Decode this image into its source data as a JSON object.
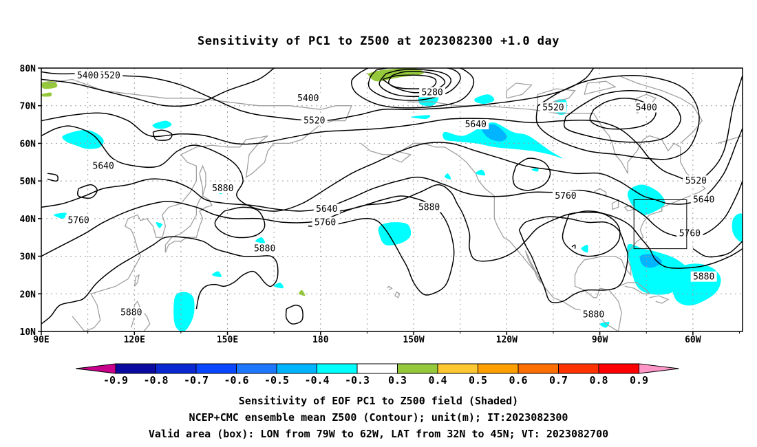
{
  "title": "Sensitivity of PC1 to Z500 at 2023082300 +1.0 day",
  "lat_labels": [
    "80N",
    "70N",
    "60N",
    "50N",
    "40N",
    "30N",
    "20N",
    "10N"
  ],
  "lon_labels": [
    "90E",
    "120E",
    "150E",
    "180",
    "150W",
    "120W",
    "90W",
    "60W"
  ],
  "contour_labels": [
    {
      "text": "5520",
      "lon": 112,
      "lat": 78
    },
    {
      "text": "5400",
      "lon": 105,
      "lat": 78
    },
    {
      "text": "5400",
      "lon": 176,
      "lat": 72
    },
    {
      "text": "5280",
      "lon": 216,
      "lat": 73.5
    },
    {
      "text": "5520",
      "lon": 255,
      "lat": 69.5
    },
    {
      "text": "5520",
      "lon": 178,
      "lat": 66
    },
    {
      "text": "5640",
      "lon": 230,
      "lat": 65
    },
    {
      "text": "5400",
      "lon": 285,
      "lat": 69.5
    },
    {
      "text": "5640",
      "lon": 110,
      "lat": 54
    },
    {
      "text": "5880",
      "lon": 148.5,
      "lat": 48
    },
    {
      "text": "5640",
      "lon": 182,
      "lat": 42.5
    },
    {
      "text": "5760",
      "lon": 181.5,
      "lat": 39
    },
    {
      "text": "5880",
      "lon": 215,
      "lat": 43
    },
    {
      "text": "5760",
      "lon": 259,
      "lat": 46
    },
    {
      "text": "5520",
      "lon": 301,
      "lat": 50
    },
    {
      "text": "5640",
      "lon": 303.5,
      "lat": 45
    },
    {
      "text": "5760",
      "lon": 299,
      "lat": 36
    },
    {
      "text": "5760",
      "lon": 102,
      "lat": 39.5
    },
    {
      "text": "5880",
      "lon": 162,
      "lat": 32
    },
    {
      "text": "5880",
      "lon": 303.5,
      "lat": 24.5
    },
    {
      "text": "5880",
      "lon": 268,
      "lat": 14.5
    },
    {
      "text": "5880",
      "lon": 119,
      "lat": 15
    }
  ],
  "valid_box": {
    "lon_min": 281,
    "lon_max": 298,
    "lat_min": 32,
    "lat_max": 45
  },
  "colorbar": {
    "labels": [
      "-0.9",
      "-0.8",
      "-0.7",
      "-0.6",
      "-0.5",
      "-0.4",
      "-0.3",
      "0.3",
      "0.4",
      "0.5",
      "0.6",
      "0.7",
      "0.8",
      "0.9"
    ],
    "colors": [
      "#0a0aa0",
      "#0a28d2",
      "#0a46ff",
      "#1e78ff",
      "#00b4ff",
      "#00ffff",
      "#ffffff",
      "#96c83c",
      "#ffc832",
      "#ffa000",
      "#ff6e00",
      "#ff3200",
      "#ff0000"
    ],
    "low_end_color": "#c8008c",
    "high_end_color": "#ff96c8"
  },
  "captions": [
    "Sensitivity of EOF PC1 to Z500 field (Shaded)",
    "NCEP+CMC ensemble mean Z500 (Contour); unit(m); IT:2023082300",
    "Valid area (box): LON from 79W to 62W, LAT from 32N to 45N; VT: 2023082700"
  ]
}
